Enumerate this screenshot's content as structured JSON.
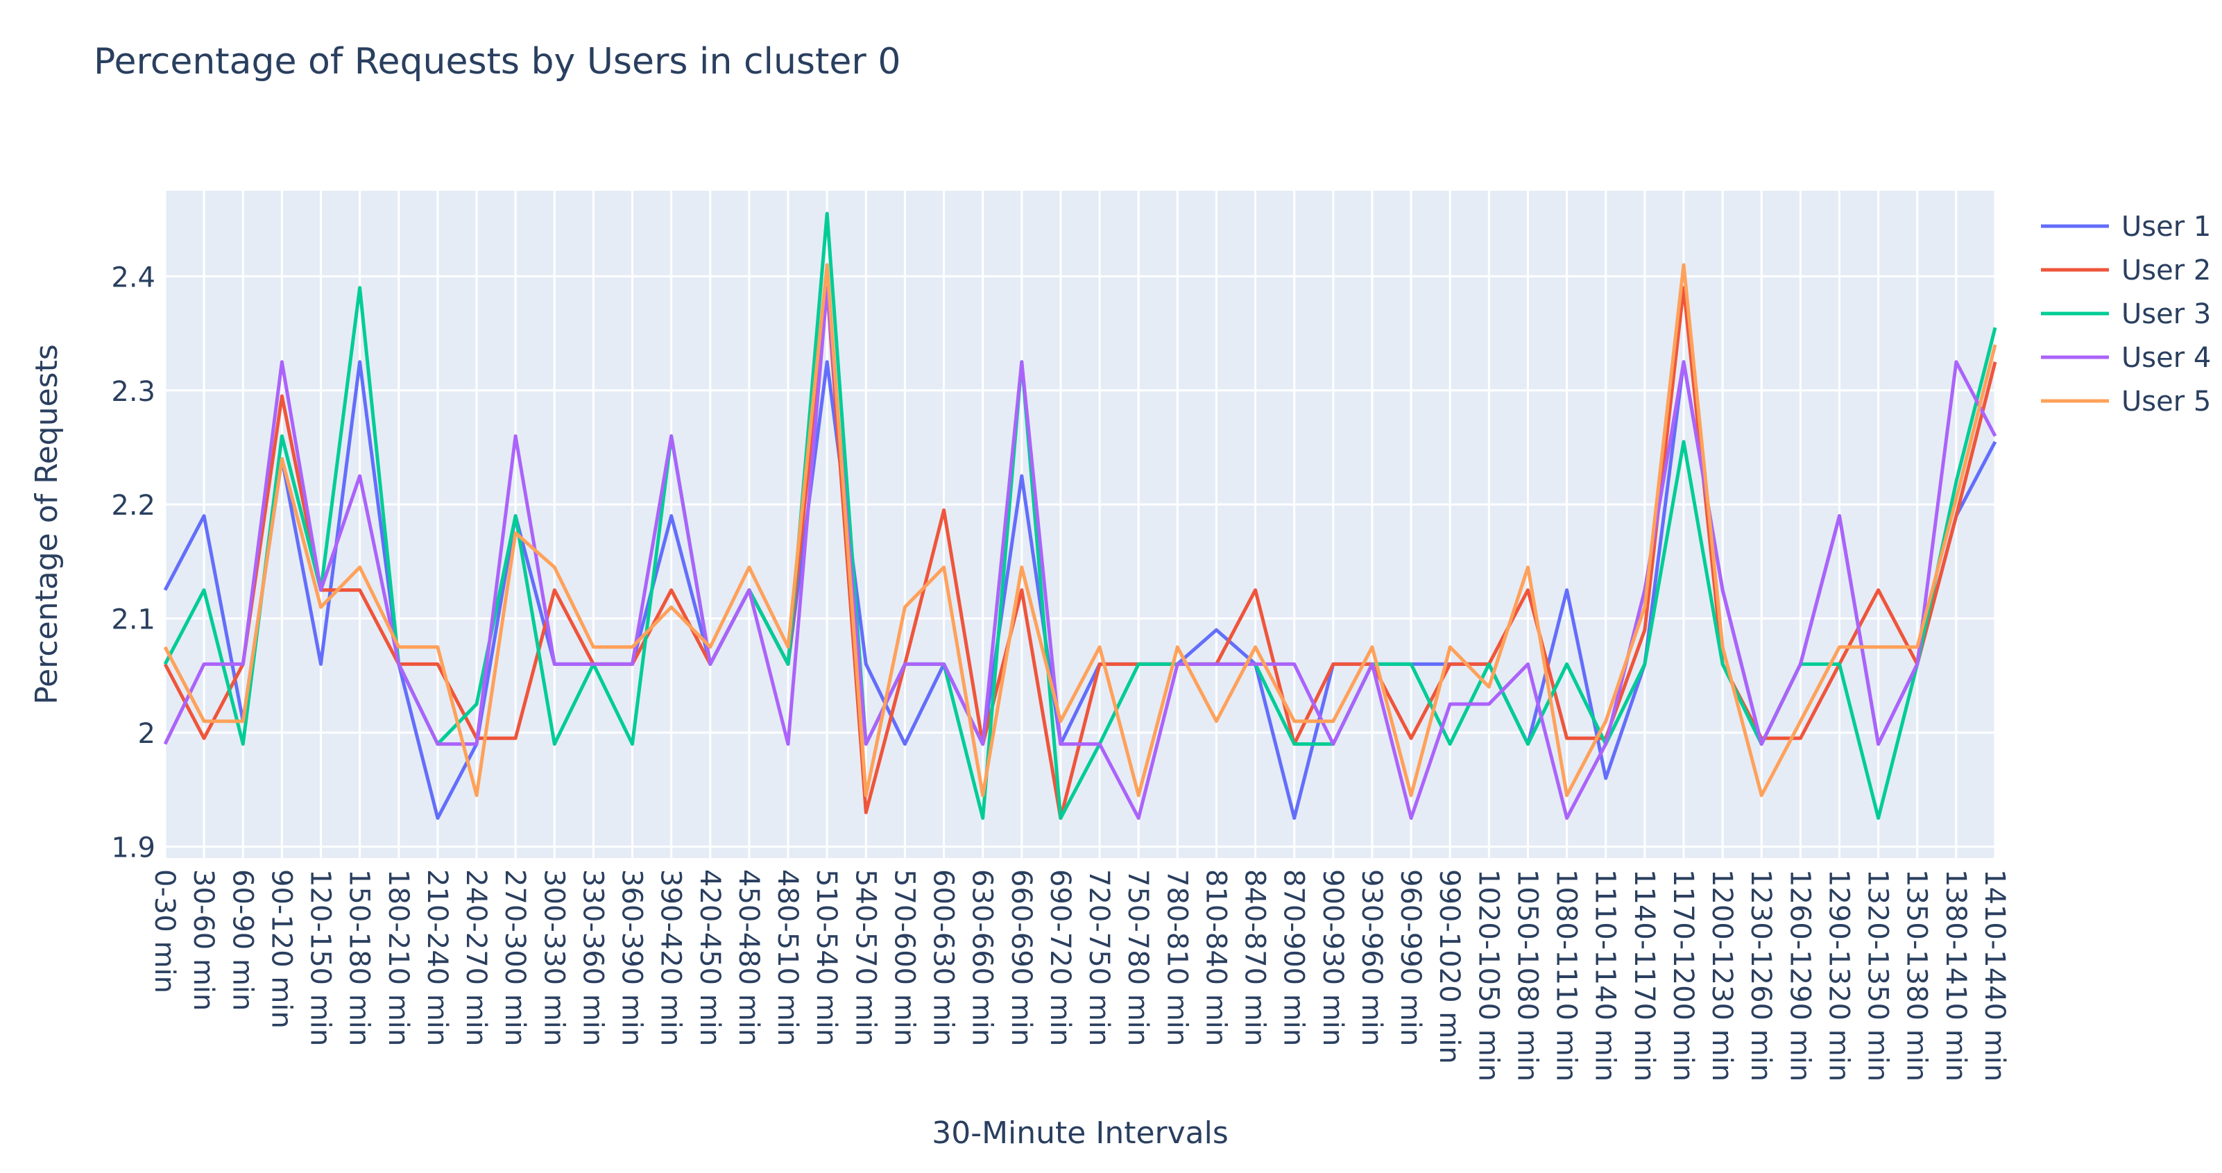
{
  "chart_data": {
    "type": "line",
    "title": "Percentage of Requests by Users in cluster 0",
    "xlabel": "30-Minute Intervals",
    "ylabel": "Percentage of Requests",
    "ylim": [
      1.89,
      2.475
    ],
    "yticks": [
      1.9,
      2,
      2.1,
      2.2,
      2.3,
      2.4
    ],
    "ytick_labels": [
      "1.9",
      "2",
      "2.1",
      "2.2",
      "2.3",
      "2.4"
    ],
    "grid": true,
    "legend_position": "top-right",
    "categories": [
      "0-30 min",
      "30-60 min",
      "60-90 min",
      "90-120 min",
      "120-150 min",
      "150-180 min",
      "180-210 min",
      "210-240 min",
      "240-270 min",
      "270-300 min",
      "300-330 min",
      "330-360 min",
      "360-390 min",
      "390-420 min",
      "420-450 min",
      "450-480 min",
      "480-510 min",
      "510-540 min",
      "540-570 min",
      "570-600 min",
      "600-630 min",
      "630-660 min",
      "660-690 min",
      "690-720 min",
      "720-750 min",
      "750-780 min",
      "780-810 min",
      "810-840 min",
      "840-870 min",
      "870-900 min",
      "900-930 min",
      "930-960 min",
      "960-990 min",
      "990-1020 min",
      "1020-1050 min",
      "1050-1080 min",
      "1080-1110 min",
      "1110-1140 min",
      "1140-1170 min",
      "1170-1200 min",
      "1200-1230 min",
      "1230-1260 min",
      "1260-1290 min",
      "1290-1320 min",
      "1320-1350 min",
      "1350-1380 min",
      "1380-1410 min",
      "1410-1440 min"
    ],
    "series": [
      {
        "name": "User 1",
        "color": "#636efa",
        "values": [
          2.125,
          2.19,
          2.01,
          2.24,
          2.06,
          2.325,
          2.06,
          1.925,
          1.99,
          2.19,
          2.06,
          2.06,
          2.06,
          2.19,
          2.06,
          2.125,
          2.06,
          2.325,
          2.06,
          1.99,
          2.06,
          1.99,
          2.225,
          1.99,
          2.06,
          2.06,
          2.06,
          2.09,
          2.06,
          1.925,
          2.06,
          2.06,
          2.06,
          2.06,
          2.06,
          1.99,
          2.125,
          1.96,
          2.06,
          2.325,
          2.125,
          1.99,
          2.06,
          2.19,
          1.99,
          2.06,
          2.19,
          2.255
        ]
      },
      {
        "name": "User 2",
        "color": "#ef553b",
        "values": [
          2.06,
          1.995,
          2.06,
          2.295,
          2.125,
          2.125,
          2.06,
          2.06,
          1.995,
          1.995,
          2.125,
          2.06,
          2.06,
          2.125,
          2.06,
          2.125,
          2.06,
          2.39,
          1.93,
          2.06,
          2.195,
          1.99,
          2.125,
          1.925,
          2.06,
          2.06,
          2.06,
          2.06,
          2.125,
          1.99,
          2.06,
          2.06,
          1.995,
          2.06,
          2.06,
          2.125,
          1.995,
          1.995,
          2.09,
          2.39,
          2.06,
          1.995,
          1.995,
          2.06,
          2.125,
          2.06,
          2.19,
          2.325
        ]
      },
      {
        "name": "User 3",
        "color": "#00cc96",
        "values": [
          2.06,
          2.125,
          1.99,
          2.26,
          2.125,
          2.39,
          2.06,
          1.99,
          2.025,
          2.19,
          1.99,
          2.06,
          1.99,
          2.26,
          2.06,
          2.125,
          2.06,
          2.455,
          1.99,
          2.06,
          2.06,
          1.925,
          2.325,
          1.925,
          1.99,
          2.06,
          2.06,
          2.06,
          2.06,
          1.99,
          1.99,
          2.06,
          2.06,
          1.99,
          2.06,
          1.99,
          2.06,
          1.99,
          2.06,
          2.255,
          2.06,
          1.99,
          2.06,
          2.06,
          1.925,
          2.06,
          2.22,
          2.355
        ]
      },
      {
        "name": "User 4",
        "color": "#ab63fa",
        "values": [
          1.99,
          2.06,
          2.06,
          2.325,
          2.125,
          2.225,
          2.06,
          1.99,
          1.99,
          2.26,
          2.06,
          2.06,
          2.06,
          2.26,
          2.06,
          2.125,
          1.99,
          2.39,
          1.99,
          2.06,
          2.06,
          1.99,
          2.325,
          1.99,
          1.99,
          1.925,
          2.06,
          2.06,
          2.06,
          2.06,
          1.99,
          2.06,
          1.925,
          2.025,
          2.025,
          2.06,
          1.925,
          1.99,
          2.125,
          2.325,
          2.125,
          1.99,
          2.06,
          2.19,
          1.99,
          2.06,
          2.325,
          2.26
        ]
      },
      {
        "name": "User 5",
        "color": "#ffa15a",
        "values": [
          2.075,
          2.01,
          2.01,
          2.24,
          2.11,
          2.145,
          2.075,
          2.075,
          1.945,
          2.175,
          2.145,
          2.075,
          2.075,
          2.11,
          2.075,
          2.145,
          2.075,
          2.41,
          1.945,
          2.11,
          2.145,
          1.945,
          2.145,
          2.01,
          2.075,
          1.945,
          2.075,
          2.01,
          2.075,
          2.01,
          2.01,
          2.075,
          1.945,
          2.075,
          2.04,
          2.145,
          1.945,
          2.01,
          2.11,
          2.41,
          2.075,
          1.945,
          2.01,
          2.075,
          2.075,
          2.075,
          2.205,
          2.34
        ]
      }
    ]
  }
}
